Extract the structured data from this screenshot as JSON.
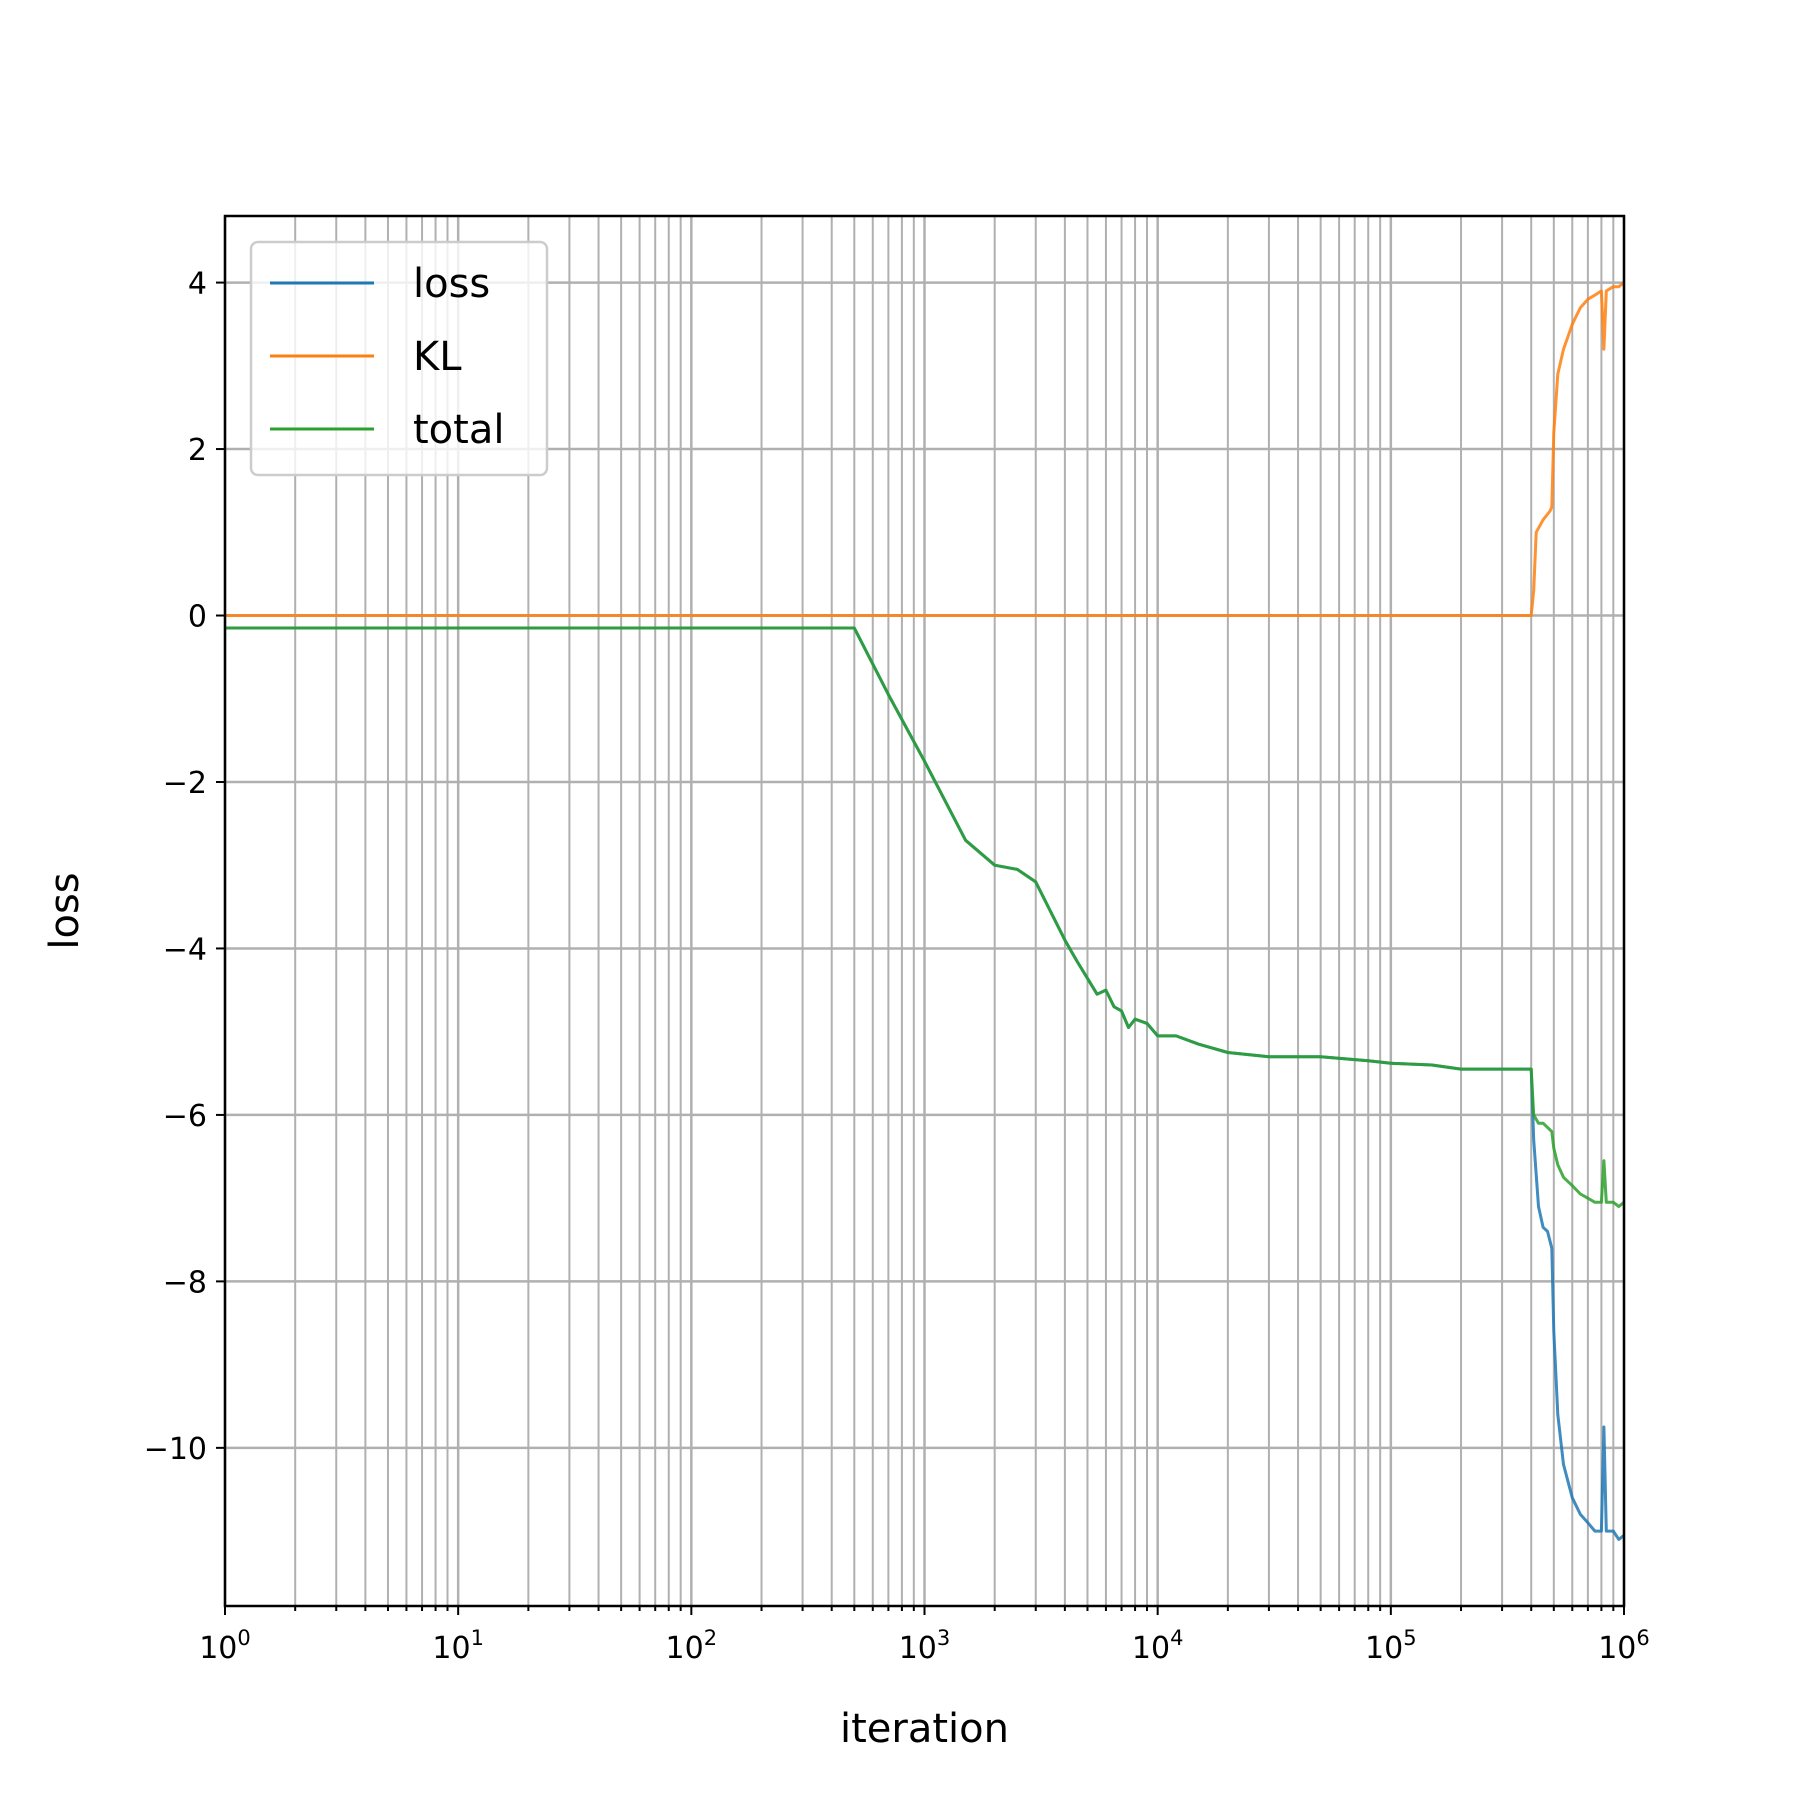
{
  "chart_data": {
    "type": "line",
    "xlabel": "iteration",
    "ylabel": "loss",
    "xscale": "log",
    "xlim": [
      1,
      1000000
    ],
    "ylim": [
      -11.9,
      4.8
    ],
    "grid": "on (major and minor)",
    "legend_position": "top-left",
    "x_ticks": [
      {
        "base": "10",
        "exp": "0"
      },
      {
        "base": "10",
        "exp": "1"
      },
      {
        "base": "10",
        "exp": "2"
      },
      {
        "base": "10",
        "exp": "3"
      },
      {
        "base": "10",
        "exp": "4"
      },
      {
        "base": "10",
        "exp": "5"
      },
      {
        "base": "10",
        "exp": "6"
      }
    ],
    "x_tick_values": [
      1,
      10,
      100,
      1000,
      10000,
      100000,
      1000000
    ],
    "y_ticks": [
      "4",
      "2",
      "0",
      "−2",
      "−4",
      "−6",
      "−8",
      "−10"
    ],
    "y_tick_values": [
      4,
      2,
      0,
      -2,
      -4,
      -6,
      -8,
      -10
    ],
    "series": [
      {
        "name": "loss",
        "color": "#1f77b4",
        "x": [
          1,
          500,
          700,
          1000,
          1500,
          2000,
          2500,
          3000,
          4000,
          4500,
          5500,
          6000,
          6500,
          7000,
          7500,
          8000,
          9000,
          10000,
          12000,
          15000,
          20000,
          30000,
          50000,
          80000,
          100000,
          150000,
          200000,
          300000,
          400000,
          410000,
          430000,
          450000,
          470000,
          490000,
          500000,
          520000,
          550000,
          600000,
          650000,
          700000,
          750000,
          800000,
          820000,
          840000,
          900000,
          950000,
          1000000
        ],
        "y": [
          -0.15,
          -0.15,
          -0.95,
          -1.75,
          -2.7,
          -3.0,
          -3.05,
          -3.2,
          -3.9,
          -4.15,
          -4.55,
          -4.5,
          -4.7,
          -4.75,
          -4.95,
          -4.85,
          -4.9,
          -5.05,
          -5.05,
          -5.15,
          -5.25,
          -5.3,
          -5.3,
          -5.35,
          -5.38,
          -5.4,
          -5.45,
          -5.45,
          -5.45,
          -6.3,
          -7.1,
          -7.35,
          -7.4,
          -7.6,
          -8.6,
          -9.6,
          -10.2,
          -10.6,
          -10.8,
          -10.9,
          -11.0,
          -11.0,
          -9.75,
          -11.0,
          -11.0,
          -11.1,
          -11.05
        ]
      },
      {
        "name": "KL",
        "color": "#ff7f0e",
        "x": [
          1,
          400000,
          410000,
          420000,
          450000,
          480000,
          490000,
          500000,
          520000,
          550000,
          600000,
          650000,
          700000,
          750000,
          800000,
          820000,
          840000,
          900000,
          950000,
          1000000
        ],
        "y": [
          0,
          0,
          0.3,
          1.0,
          1.15,
          1.25,
          1.3,
          2.2,
          2.9,
          3.2,
          3.5,
          3.7,
          3.8,
          3.85,
          3.9,
          3.2,
          3.9,
          3.95,
          3.95,
          4.0
        ]
      },
      {
        "name": "total",
        "color": "#2ca02c",
        "x": [
          1,
          500,
          700,
          1000,
          1500,
          2000,
          2500,
          3000,
          4000,
          4500,
          5500,
          6000,
          6500,
          7000,
          7500,
          8000,
          9000,
          10000,
          12000,
          15000,
          20000,
          30000,
          50000,
          80000,
          100000,
          150000,
          200000,
          300000,
          400000,
          410000,
          430000,
          450000,
          470000,
          490000,
          500000,
          520000,
          550000,
          600000,
          650000,
          700000,
          750000,
          800000,
          820000,
          840000,
          900000,
          950000,
          1000000
        ],
        "y": [
          -0.15,
          -0.15,
          -0.95,
          -1.75,
          -2.7,
          -3.0,
          -3.05,
          -3.2,
          -3.9,
          -4.15,
          -4.55,
          -4.5,
          -4.7,
          -4.75,
          -4.95,
          -4.85,
          -4.9,
          -5.05,
          -5.05,
          -5.15,
          -5.25,
          -5.3,
          -5.3,
          -5.35,
          -5.38,
          -5.4,
          -5.45,
          -5.45,
          -5.45,
          -6.0,
          -6.1,
          -6.1,
          -6.15,
          -6.2,
          -6.4,
          -6.6,
          -6.75,
          -6.85,
          -6.95,
          -7.0,
          -7.05,
          -7.05,
          -6.55,
          -7.05,
          -7.05,
          -7.1,
          -7.05
        ]
      }
    ]
  }
}
